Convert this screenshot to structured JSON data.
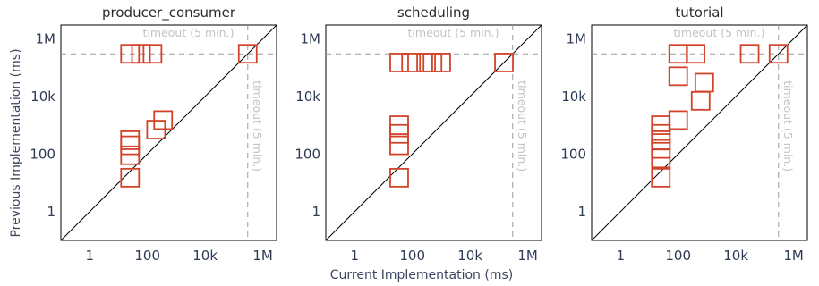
{
  "figure": {
    "xlabel": "Current Implementation (ms)",
    "ylabel": "Previous Implementation (ms)"
  },
  "chart_data": [
    {
      "type": "scatter",
      "title": "producer_consumer",
      "scale": "log",
      "xlim": [
        0.1,
        3000000
      ],
      "ylim": [
        0.1,
        3000000
      ],
      "ticks": [
        {
          "value": 1,
          "label": "1"
        },
        {
          "value": 100,
          "label": "100"
        },
        {
          "value": 10000,
          "label": "10k"
        },
        {
          "value": 1000000,
          "label": "1M"
        }
      ],
      "timeout": {
        "value": 300000,
        "label": "timeout (5 min.)"
      },
      "marker_color": "#d2432a",
      "points": [
        {
          "x": 25,
          "y": 300000
        },
        {
          "x": 60,
          "y": 300000
        },
        {
          "x": 150,
          "y": 300000
        },
        {
          "x": 300000,
          "y": 300000
        },
        {
          "x": 350,
          "y": 1500
        },
        {
          "x": 200,
          "y": 700
        },
        {
          "x": 25,
          "y": 300
        },
        {
          "x": 25,
          "y": 200
        },
        {
          "x": 25,
          "y": 90
        },
        {
          "x": 25,
          "y": 15
        }
      ]
    },
    {
      "type": "scatter",
      "title": "scheduling",
      "scale": "log",
      "xlim": [
        0.1,
        3000000
      ],
      "ylim": [
        0.1,
        3000000
      ],
      "ticks": [
        {
          "value": 1,
          "label": "1"
        },
        {
          "value": 100,
          "label": "100"
        },
        {
          "value": 10000,
          "label": "10k"
        },
        {
          "value": 1000000,
          "label": "1M"
        }
      ],
      "timeout": {
        "value": 300000,
        "label": "timeout (5 min.)"
      },
      "marker_color": "#d2432a",
      "points": [
        {
          "x": 35,
          "y": 150000
        },
        {
          "x": 90,
          "y": 150000
        },
        {
          "x": 300,
          "y": 150000
        },
        {
          "x": 500,
          "y": 150000
        },
        {
          "x": 1000,
          "y": 150000
        },
        {
          "x": 150000,
          "y": 150000
        },
        {
          "x": 35,
          "y": 1000
        },
        {
          "x": 35,
          "y": 500
        },
        {
          "x": 35,
          "y": 200
        },
        {
          "x": 35,
          "y": 15
        }
      ]
    },
    {
      "type": "scatter",
      "title": "tutorial",
      "scale": "log",
      "xlim": [
        0.1,
        3000000
      ],
      "ylim": [
        0.1,
        3000000
      ],
      "ticks": [
        {
          "value": 1,
          "label": "1"
        },
        {
          "value": 100,
          "label": "100"
        },
        {
          "value": 10000,
          "label": "10k"
        },
        {
          "value": 1000000,
          "label": "1M"
        }
      ],
      "timeout": {
        "value": 300000,
        "label": "timeout (5 min.)"
      },
      "marker_color": "#d2432a",
      "points": [
        {
          "x": 100,
          "y": 300000
        },
        {
          "x": 400,
          "y": 300000
        },
        {
          "x": 30000,
          "y": 300000
        },
        {
          "x": 300000,
          "y": 300000
        },
        {
          "x": 100,
          "y": 50000
        },
        {
          "x": 800,
          "y": 30000
        },
        {
          "x": 600,
          "y": 7000
        },
        {
          "x": 100,
          "y": 1500
        },
        {
          "x": 25,
          "y": 1000
        },
        {
          "x": 25,
          "y": 500
        },
        {
          "x": 25,
          "y": 300
        },
        {
          "x": 25,
          "y": 150
        },
        {
          "x": 25,
          "y": 70
        },
        {
          "x": 25,
          "y": 15
        }
      ]
    }
  ]
}
